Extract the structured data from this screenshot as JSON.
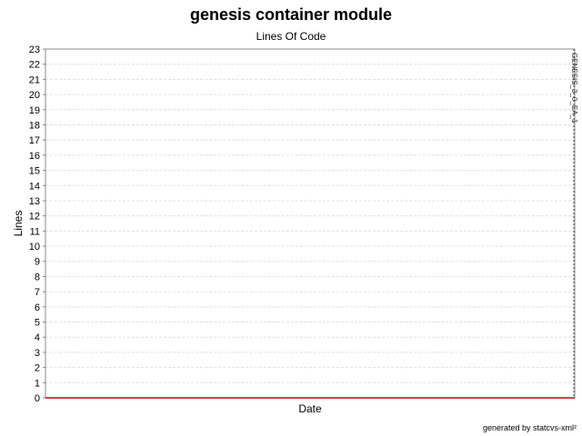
{
  "chart_data": {
    "type": "line",
    "title": "genesis container module",
    "subtitle": "Lines Of Code",
    "xlabel": "Date",
    "ylabel": "Lines",
    "ylim": [
      0,
      23
    ],
    "yticks": [
      0,
      1,
      2,
      3,
      4,
      5,
      6,
      7,
      8,
      9,
      10,
      11,
      12,
      13,
      14,
      15,
      16,
      17,
      18,
      19,
      20,
      21,
      22,
      23
    ],
    "grid": true,
    "series": [
      {
        "values": [
          0,
          0
        ]
      }
    ],
    "annotations": [
      {
        "label": "GENESIS_3_0_EA_1"
      }
    ],
    "colors": {
      "series": "#cc0000",
      "grid": "#e0e0e0",
      "axis": "#888888",
      "annotation": "#555555"
    }
  },
  "footer": {
    "credit": "generated by statcvs-xml²"
  }
}
